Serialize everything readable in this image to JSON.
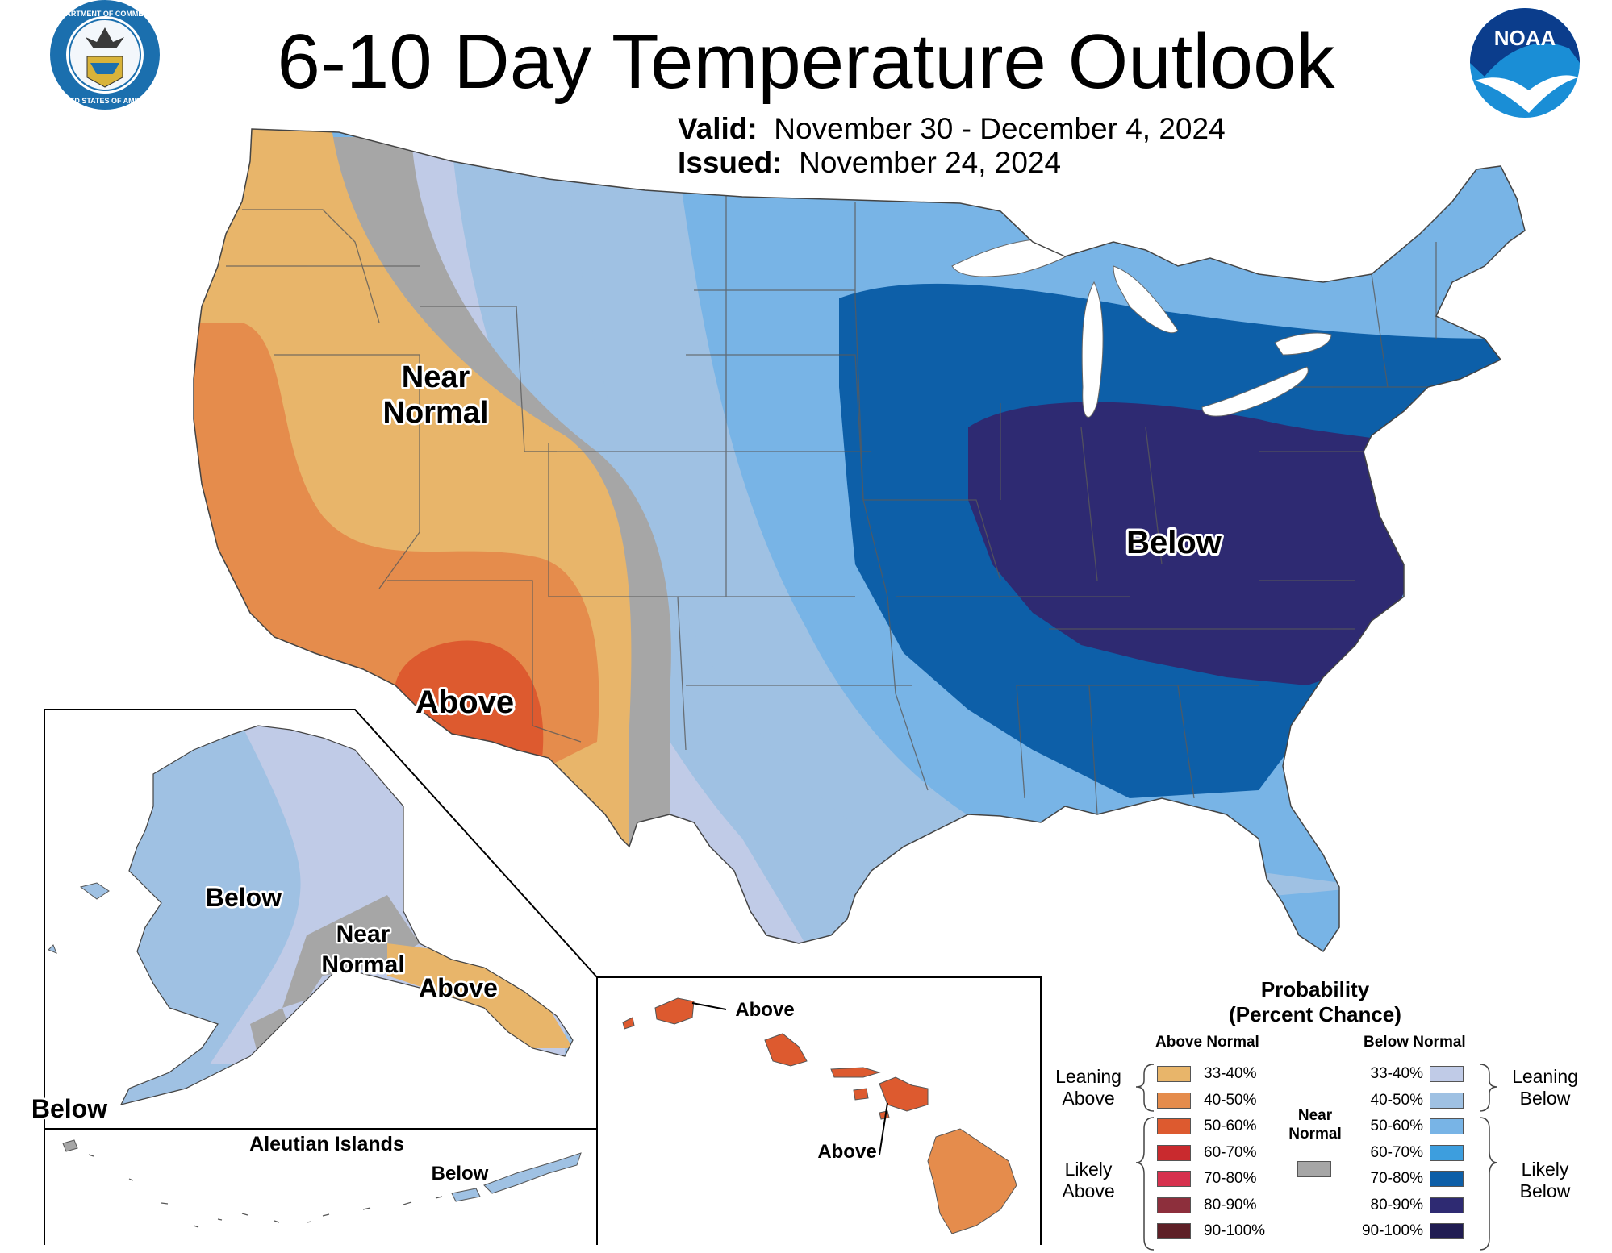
{
  "title": "6-10 Day Temperature Outlook",
  "valid_label": "Valid:",
  "valid_value": "November 30 - December 4, 2024",
  "issued_label": "Issued:",
  "issued_value": "November 24, 2024",
  "logos": {
    "commerce_seal_text_top": "DEPARTMENT OF COMMERCE",
    "commerce_seal_text_bottom": "UNITED STATES OF AMERICA",
    "noaa_text": "NOAA"
  },
  "map_labels": {
    "conus_near_normal_1": "Near",
    "conus_near_normal_2": "Normal",
    "conus_above": "Above",
    "conus_below": "Below",
    "alaska_below": "Below",
    "alaska_near_1": "Near",
    "alaska_near_2": "Normal",
    "alaska_above": "Above",
    "alaska_west_below": "Below",
    "aleutian_title": "Aleutian Islands",
    "aleutian_below": "Below",
    "hawaii_above_1": "Above",
    "hawaii_above_2": "Above"
  },
  "legend": {
    "title_1": "Probability",
    "title_2": "(Percent Chance)",
    "above_header": "Above Normal",
    "below_header": "Below Normal",
    "leaning_above_1": "Leaning",
    "leaning_above_2": "Above",
    "likely_above_1": "Likely",
    "likely_above_2": "Above",
    "leaning_below_1": "Leaning",
    "leaning_below_2": "Below",
    "likely_below_1": "Likely",
    "likely_below_2": "Below",
    "near_normal_1": "Near",
    "near_normal_2": "Normal",
    "near_normal_color": "#a6a6a6",
    "above": [
      {
        "range": "33-40%",
        "color": "#e8b56a"
      },
      {
        "range": "40-50%",
        "color": "#e58c4c"
      },
      {
        "range": "50-60%",
        "color": "#dd5a2f"
      },
      {
        "range": "60-70%",
        "color": "#c92a2e"
      },
      {
        "range": "70-80%",
        "color": "#d6314e"
      },
      {
        "range": "80-90%",
        "color": "#8d2f3c"
      },
      {
        "range": "90-100%",
        "color": "#5e1f26"
      }
    ],
    "below": [
      {
        "range": "33-40%",
        "color": "#c0cbe7"
      },
      {
        "range": "40-50%",
        "color": "#9fc1e3"
      },
      {
        "range": "50-60%",
        "color": "#78b4e6"
      },
      {
        "range": "60-70%",
        "color": "#3d9ede"
      },
      {
        "range": "70-80%",
        "color": "#0d5fa8"
      },
      {
        "range": "80-90%",
        "color": "#2e2a72"
      },
      {
        "range": "90-100%",
        "color": "#201c52"
      }
    ]
  }
}
